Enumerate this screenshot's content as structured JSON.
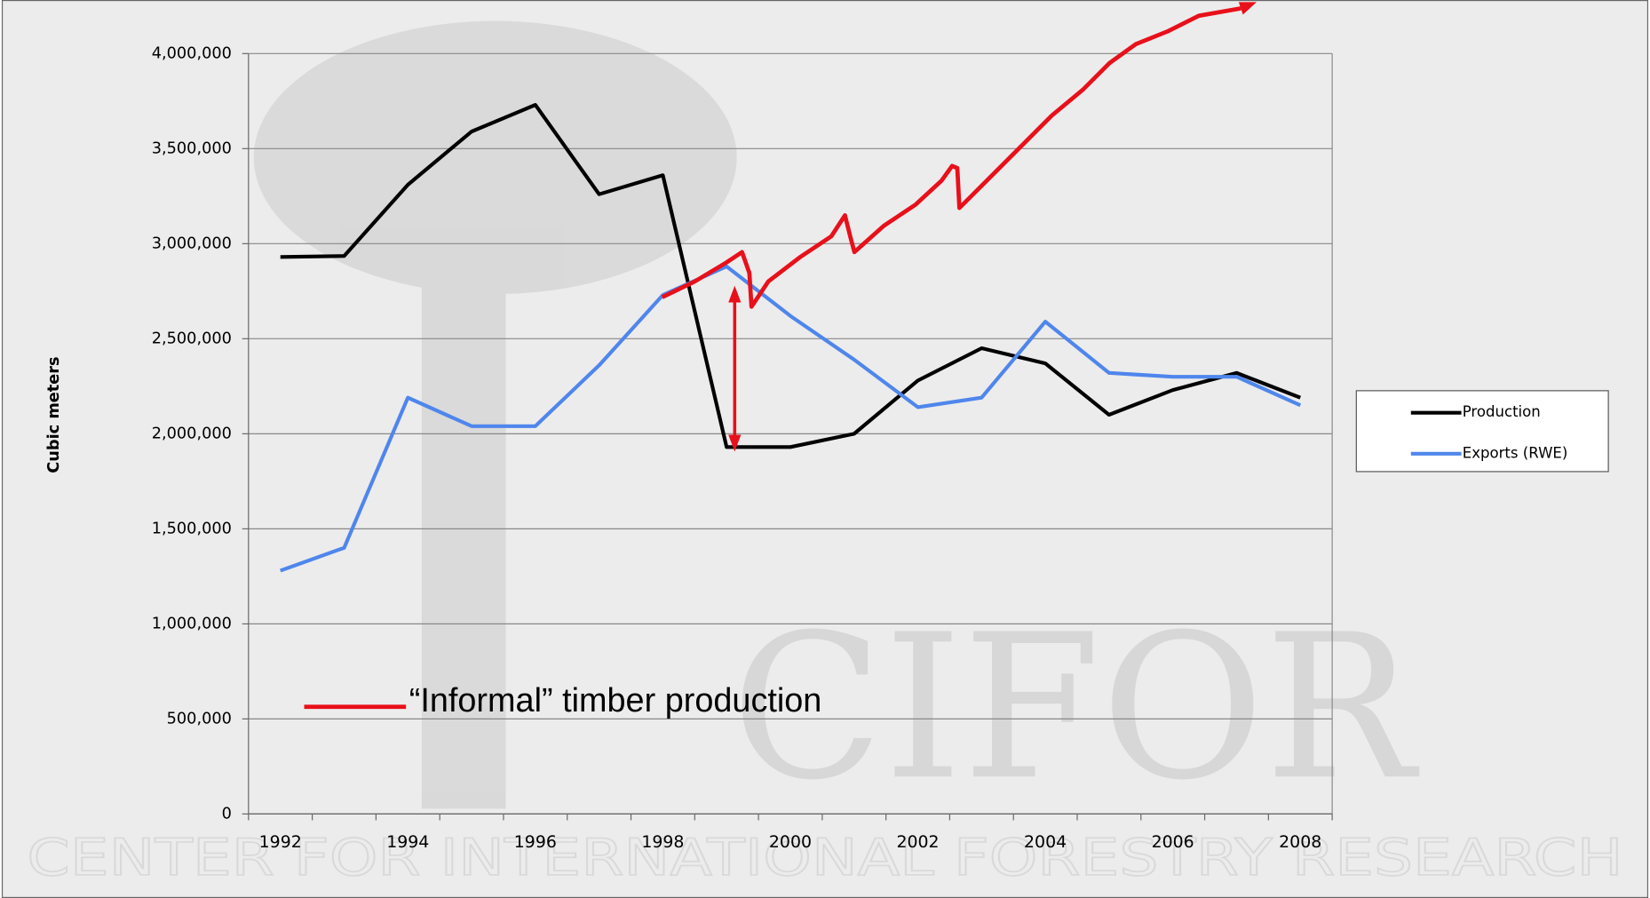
{
  "chart_data": {
    "type": "line",
    "y_label": "Cubic meters",
    "categories": [
      "1992",
      null,
      "1994",
      null,
      "1996",
      null,
      "1998",
      null,
      "2000",
      null,
      "2002",
      null,
      "2004",
      null,
      "2006",
      null,
      "2008"
    ],
    "series": [
      {
        "name": "Production",
        "color": "#000000",
        "values": [
          2930000,
          2935000,
          3310000,
          3590000,
          3730000,
          3260000,
          3360000,
          1930000,
          1930000,
          2000000,
          2280000,
          2450000,
          2370000,
          2100000,
          2230000,
          2320000,
          2190000
        ]
      },
      {
        "name": "Exports (RWE)",
        "color": "#4f86ec",
        "values": [
          1280000,
          1400000,
          2190000,
          2040000,
          2040000,
          2360000,
          2730000,
          2880000,
          2620000,
          2390000,
          2140000,
          2190000,
          2590000,
          2320000,
          2300000,
          2300000,
          2150000
        ]
      }
    ],
    "ylim": [
      0,
      4000000
    ],
    "yticks": [
      0,
      {
        "value": 500000,
        "label": "500,000"
      },
      {
        "value": 1000000,
        "label": "1,000,000"
      },
      {
        "value": 1500000,
        "label": "1,500,000"
      },
      {
        "value": 2000000,
        "label": "2,000,000"
      },
      {
        "value": 2500000,
        "label": "2,500,000"
      },
      {
        "value": 3000000,
        "label": "3,000,000"
      },
      {
        "value": 3500000,
        "label": "3,500,000"
      },
      {
        "value": 4000000,
        "label": "4,000,000"
      }
    ],
    "grid": true,
    "legend": "right",
    "annotation": "“Informal” timber production",
    "watermark": {
      "logo": "CIFOR",
      "tagline": "CENTER FOR INTERNATIONAL FORESTRY RESEARCH"
    }
  }
}
